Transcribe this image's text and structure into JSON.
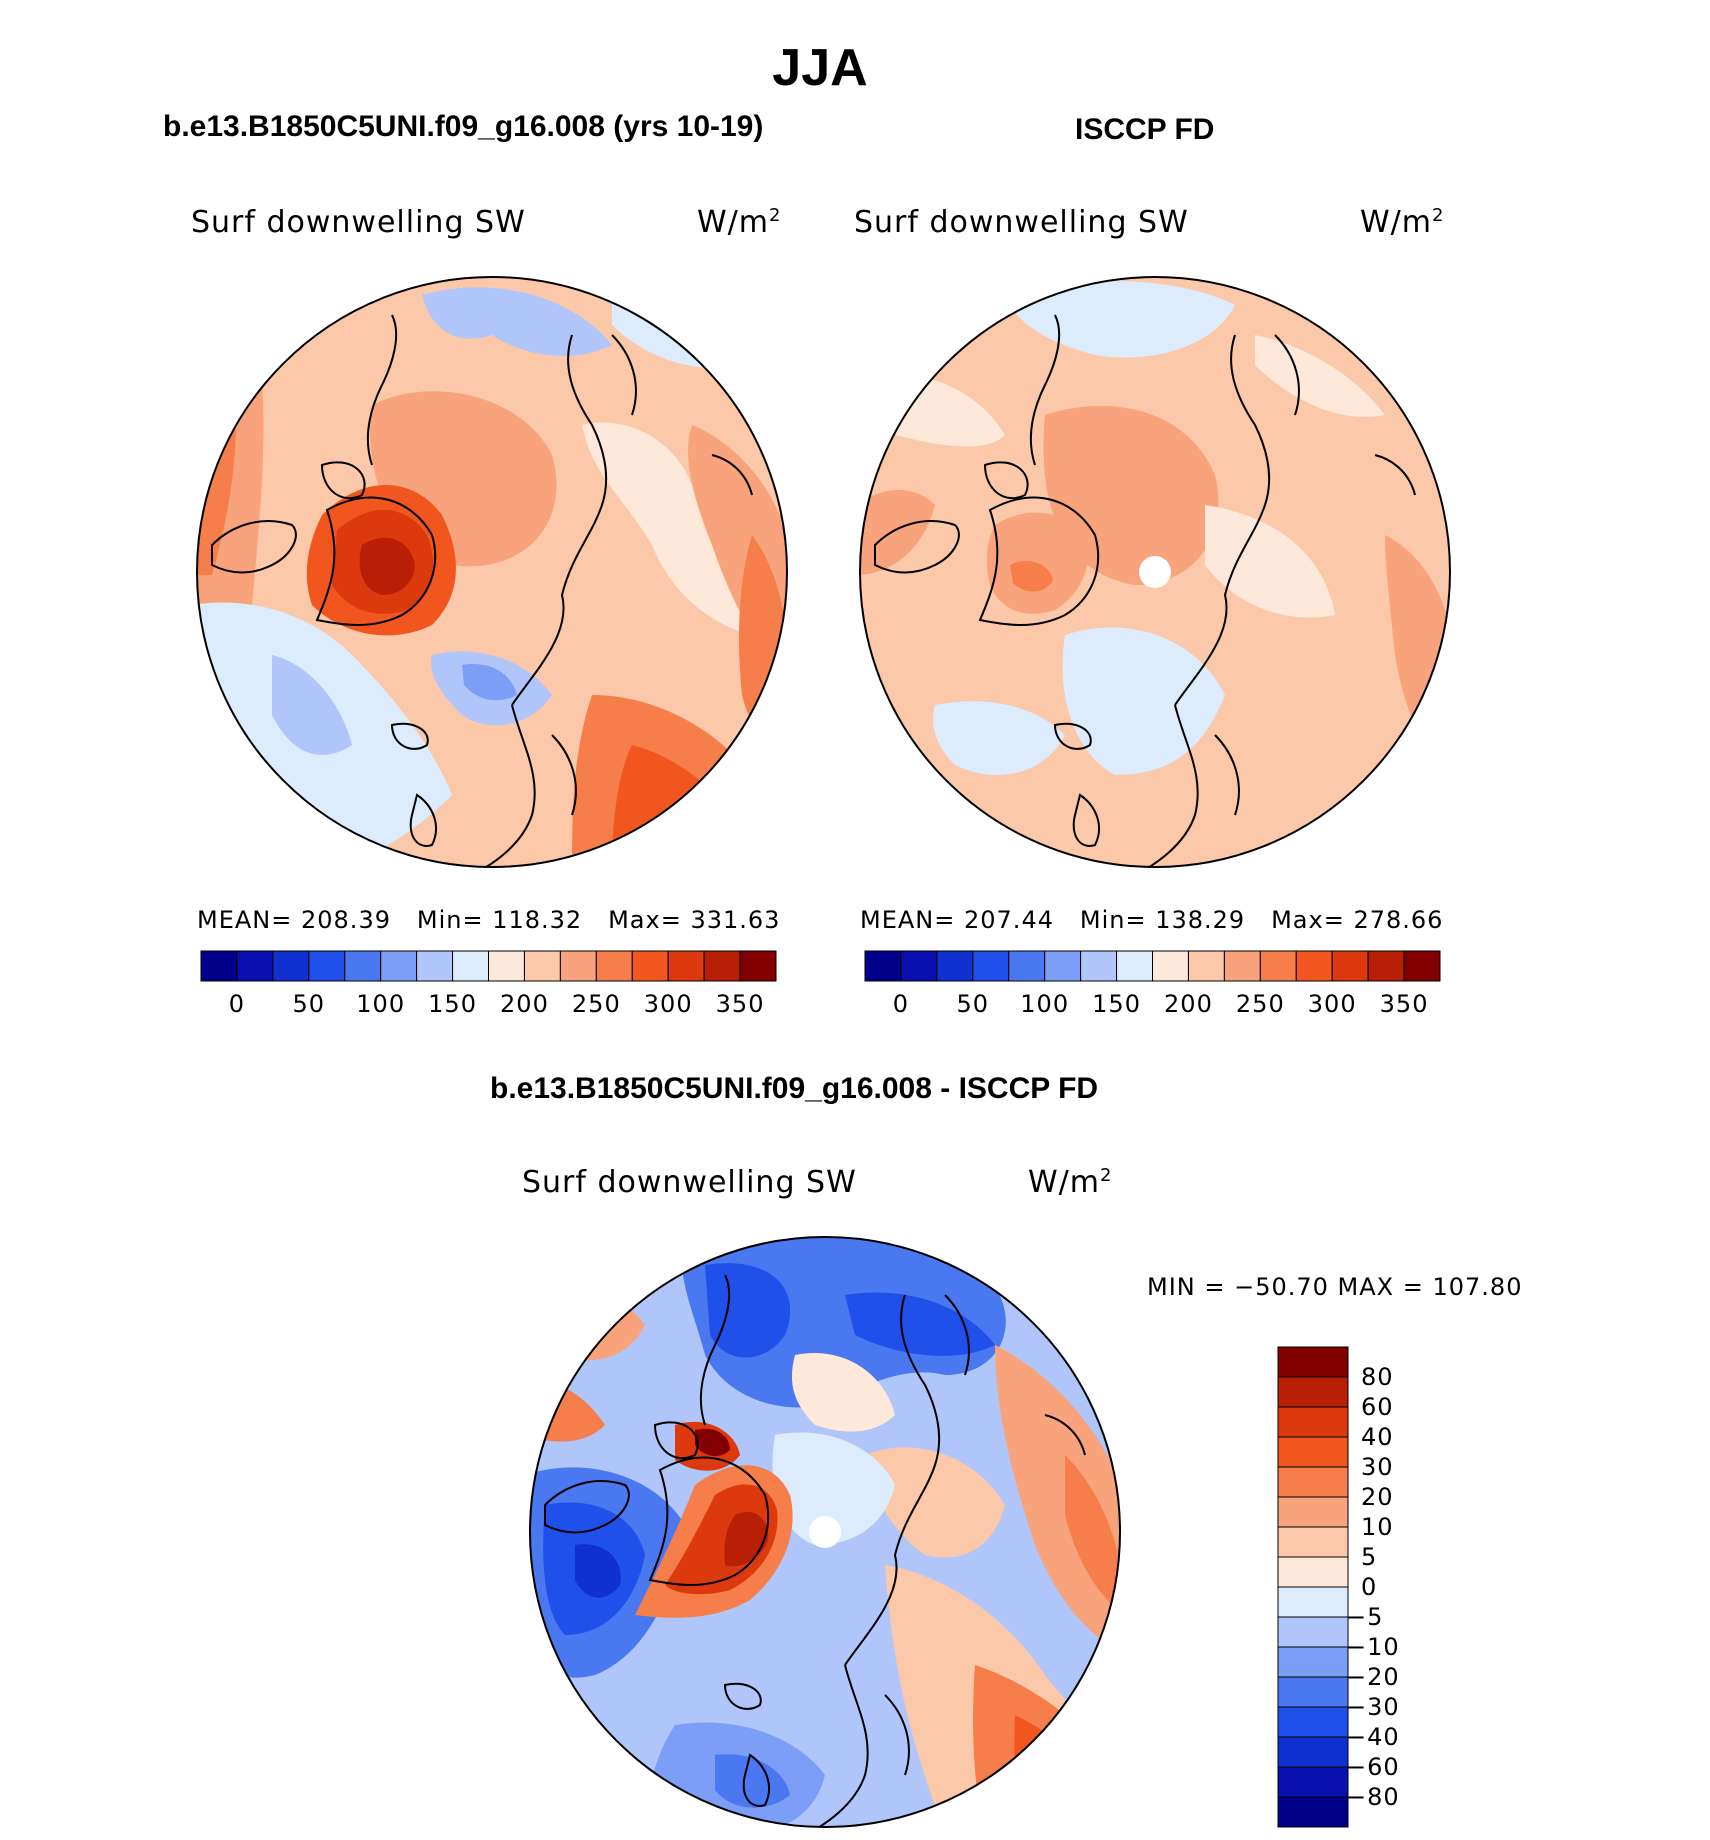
{
  "title": "JJA",
  "units": "W/m",
  "units_sup": "2",
  "panels": [
    {
      "title": "b.e13.B1850C5UNI.f09_g16.008 (yrs 10-19)",
      "variable": "Surf downwelling SW",
      "stats": {
        "mean_label": "MEAN=",
        "mean": "208.39",
        "min_label": "Min=",
        "min": "118.32",
        "max_label": "Max=",
        "max": "331.63"
      }
    },
    {
      "title": "ISCCP FD",
      "variable": "Surf downwelling SW",
      "stats": {
        "mean_label": "MEAN=",
        "mean": "207.44",
        "min_label": "Min=",
        "min": "138.29",
        "max_label": "Max=",
        "max": "278.66"
      }
    },
    {
      "title": "b.e13.B1850C5UNI.f09_g16.008 - ISCCP FD",
      "variable": "Surf downwelling SW",
      "stats_text": "MIN = −50.70 MAX = 107.80"
    }
  ],
  "colorbar_abs": {
    "colors": [
      "#00008a",
      "#0a0fb0",
      "#1030d0",
      "#2050ea",
      "#4a78f0",
      "#7c9ef6",
      "#b0c6fa",
      "#dcecfc",
      "#fde8da",
      "#fbc8aa",
      "#f8a37c",
      "#f67e4a",
      "#f2561f",
      "#dc3a0e",
      "#b81f05",
      "#820000"
    ],
    "labels": [
      "0",
      "50",
      "100",
      "150",
      "200",
      "250",
      "300",
      "350"
    ]
  },
  "colorbar_diff": {
    "colors": [
      "#820000",
      "#b81f05",
      "#dc3a0e",
      "#f2561f",
      "#f67e4a",
      "#f8a37c",
      "#fbc8aa",
      "#fde8da",
      "#dcecfc",
      "#b0c6fa",
      "#7c9ef6",
      "#4a78f0",
      "#2050ea",
      "#1030d0",
      "#0a0fb0",
      "#00008a"
    ],
    "labels": [
      "80",
      "60",
      "40",
      "30",
      "20",
      "10",
      "5",
      "0",
      "−5",
      "−10",
      "−20",
      "−30",
      "−40",
      "−60",
      "−80"
    ]
  }
}
